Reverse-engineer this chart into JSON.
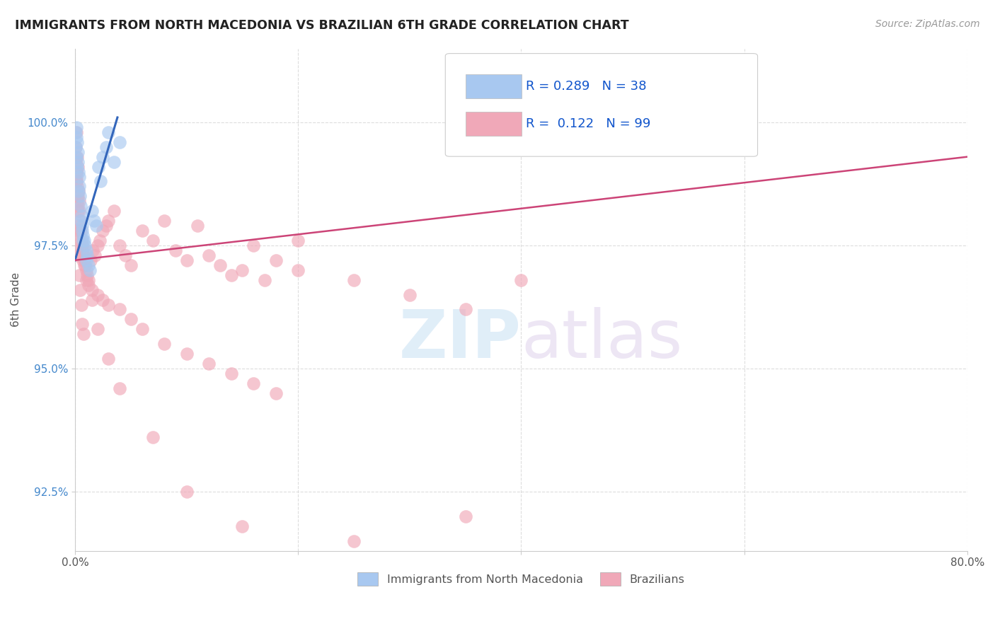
{
  "title": "IMMIGRANTS FROM NORTH MACEDONIA VS BRAZILIAN 6TH GRADE CORRELATION CHART",
  "source_text": "Source: ZipAtlas.com",
  "ylabel_text": "6th Grade",
  "xlim": [
    0.0,
    80.0
  ],
  "ylim": [
    91.3,
    101.5
  ],
  "xticks": [
    0.0,
    20.0,
    40.0,
    60.0,
    80.0
  ],
  "xtick_labels": [
    "0.0%",
    "",
    "",
    "",
    "80.0%"
  ],
  "yticks": [
    92.5,
    95.0,
    97.5,
    100.0
  ],
  "ytick_labels": [
    "92.5%",
    "95.0%",
    "97.5%",
    "100.0%"
  ],
  "blue_R": 0.289,
  "blue_N": 38,
  "pink_R": 0.122,
  "pink_N": 99,
  "blue_color": "#a8c8f0",
  "pink_color": "#f0a8b8",
  "blue_line_color": "#3366bb",
  "pink_line_color": "#cc4477",
  "legend_label_blue": "Immigrants from North Macedonia",
  "legend_label_pink": "Brazilians",
  "watermark_zip": "ZIP",
  "watermark_atlas": "atlas",
  "background_color": "#ffffff",
  "blue_scatter": {
    "x": [
      0.05,
      0.08,
      0.12,
      0.15,
      0.18,
      0.22,
      0.25,
      0.3,
      0.35,
      0.4,
      0.45,
      0.5,
      0.55,
      0.6,
      0.65,
      0.7,
      0.8,
      0.9,
      1.0,
      1.1,
      1.2,
      1.3,
      1.5,
      1.7,
      1.9,
      2.1,
      2.3,
      2.5,
      2.8,
      3.0,
      3.5,
      4.0,
      0.1,
      0.2,
      0.3,
      0.5,
      0.7,
      1.0
    ],
    "y": [
      99.8,
      99.5,
      99.7,
      99.3,
      99.6,
      99.4,
      99.2,
      99.0,
      98.9,
      98.7,
      98.5,
      98.3,
      98.1,
      97.9,
      97.8,
      97.7,
      97.6,
      97.5,
      97.4,
      97.3,
      97.1,
      97.0,
      98.2,
      98.0,
      97.9,
      99.1,
      98.8,
      99.3,
      99.5,
      99.8,
      99.2,
      99.6,
      99.9,
      99.1,
      98.6,
      98.0,
      97.6,
      97.2
    ]
  },
  "pink_scatter": {
    "x": [
      0.05,
      0.08,
      0.1,
      0.12,
      0.15,
      0.18,
      0.2,
      0.22,
      0.25,
      0.28,
      0.3,
      0.35,
      0.4,
      0.45,
      0.5,
      0.55,
      0.6,
      0.65,
      0.7,
      0.8,
      0.9,
      1.0,
      1.1,
      1.2,
      1.4,
      1.6,
      1.8,
      2.0,
      2.2,
      2.5,
      2.8,
      3.0,
      3.5,
      4.0,
      4.5,
      5.0,
      6.0,
      7.0,
      8.0,
      9.0,
      10.0,
      11.0,
      12.0,
      13.0,
      14.0,
      15.0,
      16.0,
      17.0,
      18.0,
      20.0,
      0.1,
      0.15,
      0.2,
      0.25,
      0.3,
      0.4,
      0.5,
      0.6,
      0.7,
      0.8,
      1.0,
      1.2,
      1.5,
      2.0,
      2.5,
      3.0,
      4.0,
      5.0,
      6.0,
      8.0,
      10.0,
      12.0,
      14.0,
      16.0,
      18.0,
      20.0,
      25.0,
      30.0,
      35.0,
      40.0,
      0.08,
      0.12,
      0.18,
      0.22,
      0.28,
      0.35,
      0.45,
      0.55,
      0.65,
      0.75,
      1.5,
      2.0,
      3.0,
      4.0,
      7.0,
      10.0,
      15.0,
      25.0,
      35.0
    ],
    "y": [
      99.5,
      99.2,
      99.8,
      98.9,
      99.0,
      98.7,
      99.3,
      98.5,
      99.1,
      98.3,
      98.6,
      98.4,
      98.2,
      98.0,
      97.8,
      97.6,
      97.4,
      97.5,
      97.3,
      97.2,
      97.1,
      97.0,
      96.9,
      96.8,
      97.2,
      97.4,
      97.3,
      97.5,
      97.6,
      97.8,
      97.9,
      98.0,
      98.2,
      97.5,
      97.3,
      97.1,
      97.8,
      97.6,
      98.0,
      97.4,
      97.2,
      97.9,
      97.3,
      97.1,
      96.9,
      97.0,
      97.5,
      96.8,
      97.2,
      97.6,
      98.8,
      99.0,
      98.5,
      98.2,
      97.9,
      97.7,
      97.5,
      97.4,
      97.2,
      97.1,
      96.8,
      96.7,
      96.6,
      96.5,
      96.4,
      96.3,
      96.2,
      96.0,
      95.8,
      95.5,
      95.3,
      95.1,
      94.9,
      94.7,
      94.5,
      97.0,
      96.8,
      96.5,
      96.2,
      96.8,
      99.3,
      98.8,
      98.4,
      97.8,
      97.3,
      96.9,
      96.6,
      96.3,
      95.9,
      95.7,
      96.4,
      95.8,
      95.2,
      94.6,
      93.6,
      92.5,
      91.8,
      91.5,
      92.0
    ]
  },
  "blue_line": {
    "x0": 0.0,
    "x1": 3.8,
    "y0": 97.2,
    "y1": 100.1
  },
  "pink_line": {
    "x0": 0.0,
    "x1": 80.0,
    "y0": 97.2,
    "y1": 99.3
  }
}
